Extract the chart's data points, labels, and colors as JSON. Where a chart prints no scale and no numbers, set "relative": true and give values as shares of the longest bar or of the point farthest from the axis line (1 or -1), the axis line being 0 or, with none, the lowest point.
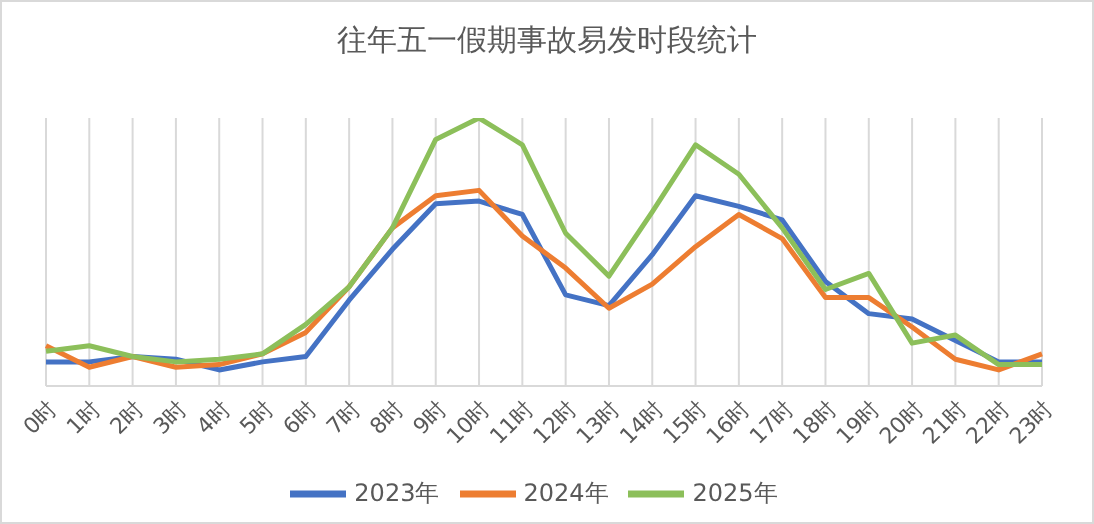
{
  "chart_data": {
    "type": "line",
    "title": "往年五一假期事故易发时段统计",
    "relative": true,
    "grid": "x",
    "legend": "bottom",
    "marker": "none",
    "line_style": "solid",
    "categories": [
      "0时",
      "1时",
      "2时",
      "3时",
      "4时",
      "5时",
      "6时",
      "7时",
      "8时",
      "9时",
      "10时",
      "11时",
      "12时",
      "13时",
      "14时",
      "15时",
      "16时",
      "17时",
      "18时",
      "19时",
      "20时",
      "21时",
      "22时",
      "23时"
    ],
    "series": [
      {
        "name": "2023年",
        "color": "#4472c4",
        "values": [
          0.09,
          0.09,
          0.11,
          0.1,
          0.06,
          0.09,
          0.11,
          0.32,
          0.51,
          0.68,
          0.69,
          0.64,
          0.34,
          0.3,
          0.49,
          0.71,
          0.67,
          0.62,
          0.39,
          0.27,
          0.25,
          0.17,
          0.09,
          0.09
        ]
      },
      {
        "name": "2024年",
        "color": "#ed7d31",
        "values": [
          0.15,
          0.07,
          0.11,
          0.07,
          0.08,
          0.12,
          0.2,
          0.37,
          0.59,
          0.71,
          0.73,
          0.56,
          0.44,
          0.29,
          0.38,
          0.52,
          0.64,
          0.55,
          0.33,
          0.33,
          0.22,
          0.1,
          0.06,
          0.12
        ]
      },
      {
        "name": "2025年",
        "color": "#8cbf5a",
        "values": [
          0.13,
          0.15,
          0.11,
          0.09,
          0.1,
          0.12,
          0.23,
          0.37,
          0.59,
          0.92,
          1,
          0.9,
          0.57,
          0.41,
          0.65,
          0.9,
          0.79,
          0.59,
          0.36,
          0.42,
          0.16,
          0.19,
          0.08,
          0.08
        ]
      }
    ]
  }
}
